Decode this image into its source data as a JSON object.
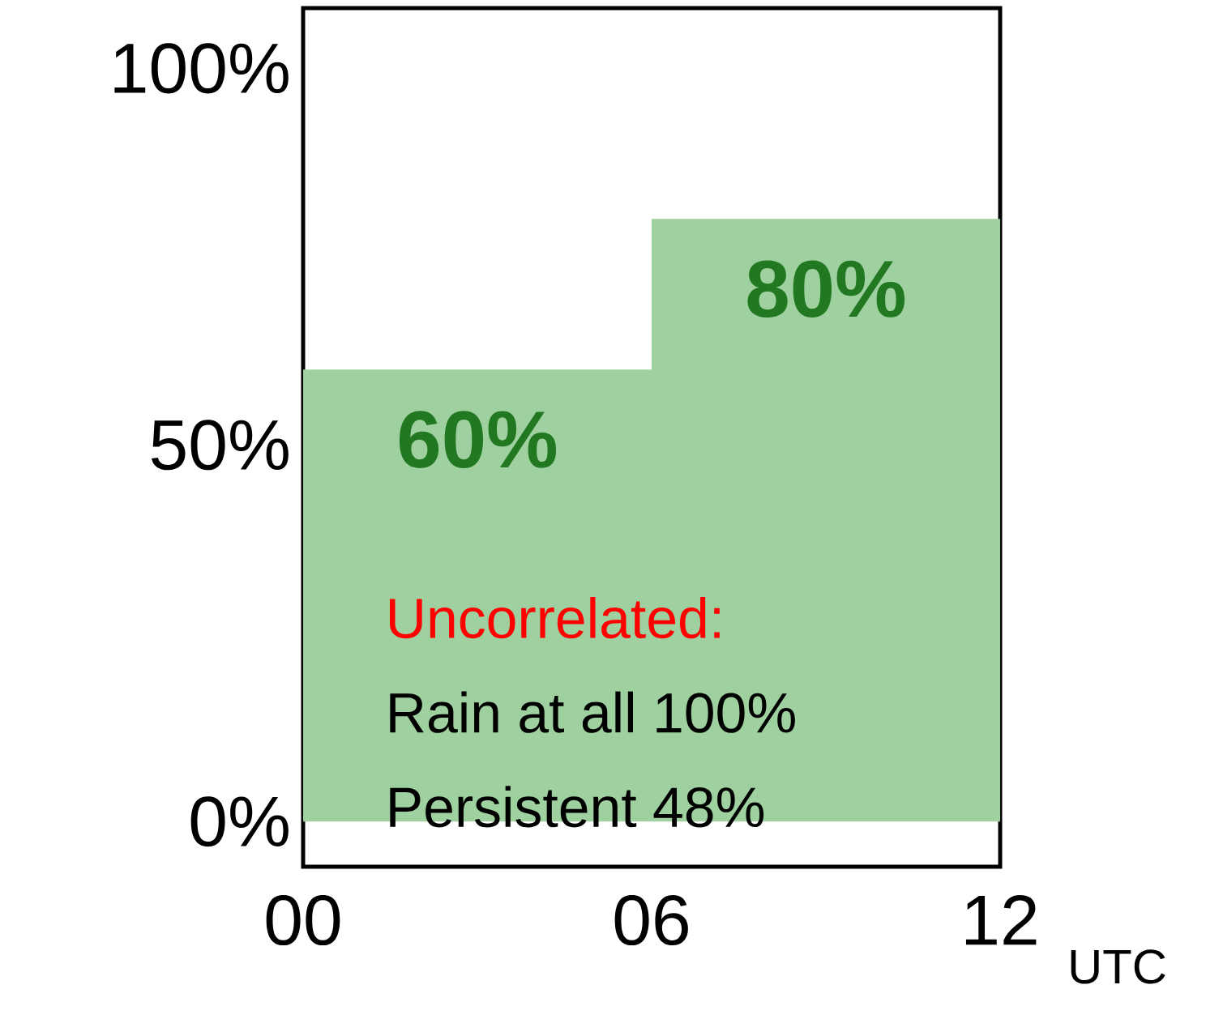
{
  "chart_data": {
    "type": "histogram",
    "bins": [
      0,
      6,
      12
    ],
    "values": [
      60,
      80
    ],
    "value_labels": [
      "60%",
      "80%"
    ],
    "color": "#9fd09f",
    "xlim": [
      0,
      12
    ],
    "xticks": [
      {
        "value": 0,
        "label": "00"
      },
      {
        "value": 6,
        "label": "06"
      },
      {
        "value": 12,
        "label": "12"
      }
    ],
    "xlabel": "UTC",
    "ylim": [
      -6,
      108
    ],
    "yticks": [
      {
        "value": 0,
        "label": "0%"
      },
      {
        "value": 50,
        "label": "50%"
      },
      {
        "value": 100,
        "label": "100%"
      }
    ],
    "grid": false,
    "annotations": [
      "Uncorrelated:",
      "Rain at all 100%",
      "Persistent 48%"
    ]
  }
}
